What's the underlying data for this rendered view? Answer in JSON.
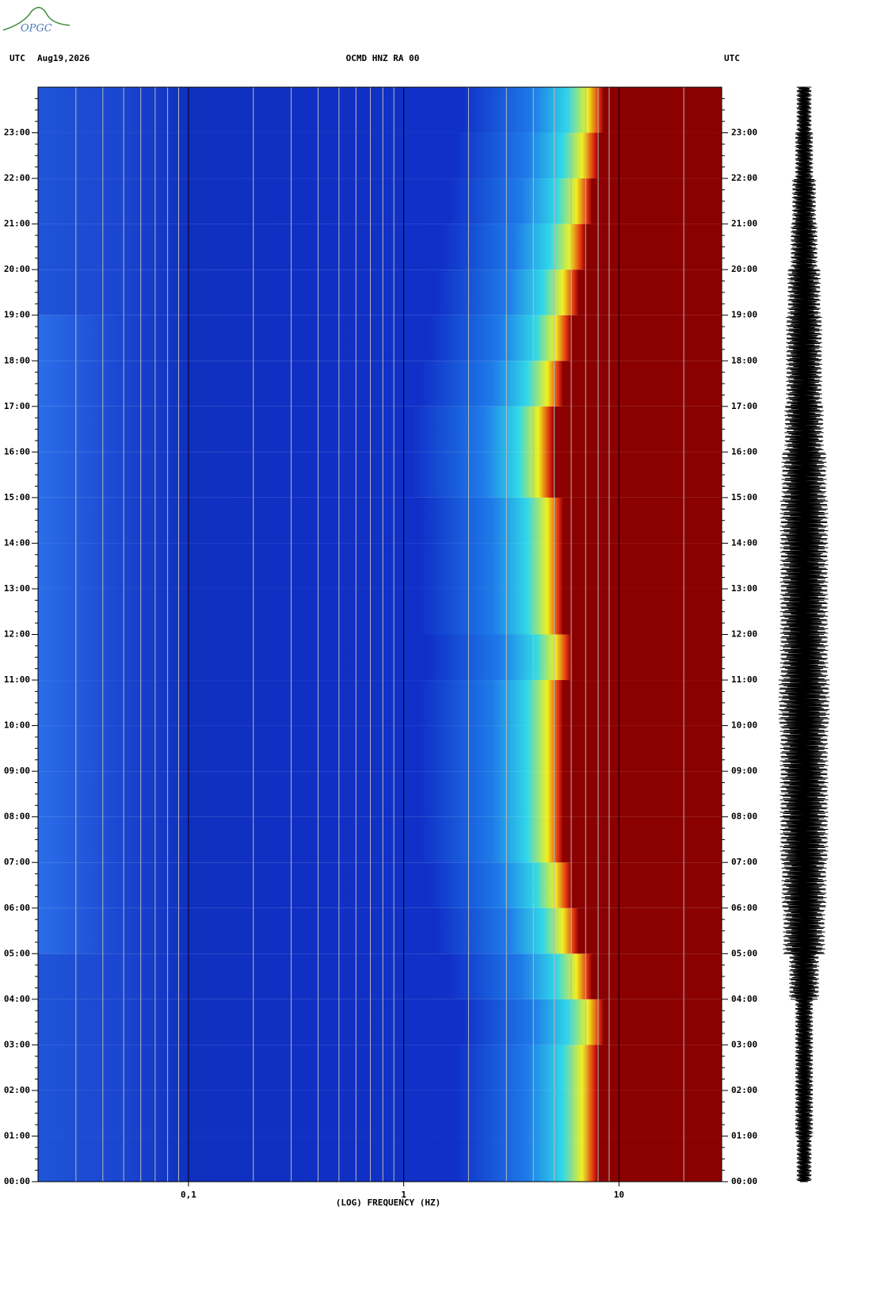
{
  "logo": "OPGC",
  "chart_data": {
    "type": "spectrogram",
    "title": "OCMD HNZ RA 00",
    "date": "Aug19,2026",
    "y_axis_label_left": "UTC",
    "y_axis_label_right": "UTC",
    "x_axis_label": "(LOG) FREQUENCY (HZ)",
    "x_log_scale": true,
    "xlim": [
      0.02,
      30
    ],
    "xticks": [
      {
        "value": 0.1,
        "label": "0,1"
      },
      1,
      10
    ],
    "x_minor_ticks": [
      0.03,
      0.04,
      0.05,
      0.06,
      0.07,
      0.08,
      0.09,
      0.2,
      0.3,
      0.4,
      0.5,
      0.6,
      0.7,
      0.8,
      0.9,
      2,
      3,
      4,
      5,
      6,
      7,
      8,
      9,
      20
    ],
    "ylim": [
      0,
      24
    ],
    "yticks": [
      {
        "value": 0,
        "label": "00:00"
      },
      {
        "value": 1,
        "label": "01:00"
      },
      {
        "value": 2,
        "label": "02:00"
      },
      {
        "value": 3,
        "label": "03:00"
      },
      {
        "value": 4,
        "label": "04:00"
      },
      {
        "value": 5,
        "label": "05:00"
      },
      {
        "value": 6,
        "label": "06:00"
      },
      {
        "value": 7,
        "label": "07:00"
      },
      {
        "value": 8,
        "label": "08:00"
      },
      {
        "value": 9,
        "label": "09:00"
      },
      {
        "value": 10,
        "label": "10:00"
      },
      {
        "value": 11,
        "label": "11:00"
      },
      {
        "value": 12,
        "label": "12:00"
      },
      {
        "value": 13,
        "label": "13:00"
      },
      {
        "value": 14,
        "label": "14:00"
      },
      {
        "value": 15,
        "label": "15:00"
      },
      {
        "value": 16,
        "label": "16:00"
      },
      {
        "value": 17,
        "label": "17:00"
      },
      {
        "value": 18,
        "label": "18:00"
      },
      {
        "value": 19,
        "label": "19:00"
      },
      {
        "value": 20,
        "label": "20:00"
      },
      {
        "value": 21,
        "label": "21:00"
      },
      {
        "value": 22,
        "label": "22:00"
      },
      {
        "value": 23,
        "label": "23:00"
      }
    ],
    "hours": [
      0,
      1,
      2,
      3,
      4,
      5,
      6,
      7,
      8,
      9,
      10,
      11,
      12,
      13,
      14,
      15,
      16,
      17,
      18,
      19,
      20,
      21,
      22,
      23
    ],
    "high_energy_onset_hz": [
      8,
      8,
      8,
      8.5,
      7.5,
      6.5,
      6,
      5.5,
      5.5,
      5.5,
      5.5,
      6,
      5.5,
      5.5,
      5.5,
      5,
      5,
      5.5,
      6,
      6.5,
      7,
      7.5,
      8,
      8.5
    ],
    "trace_amplitude": [
      0.25,
      0.3,
      0.3,
      0.3,
      0.5,
      0.7,
      0.75,
      0.8,
      0.8,
      0.8,
      0.85,
      0.8,
      0.8,
      0.8,
      0.8,
      0.75,
      0.65,
      0.6,
      0.6,
      0.55,
      0.45,
      0.4,
      0.3,
      0.25
    ]
  }
}
